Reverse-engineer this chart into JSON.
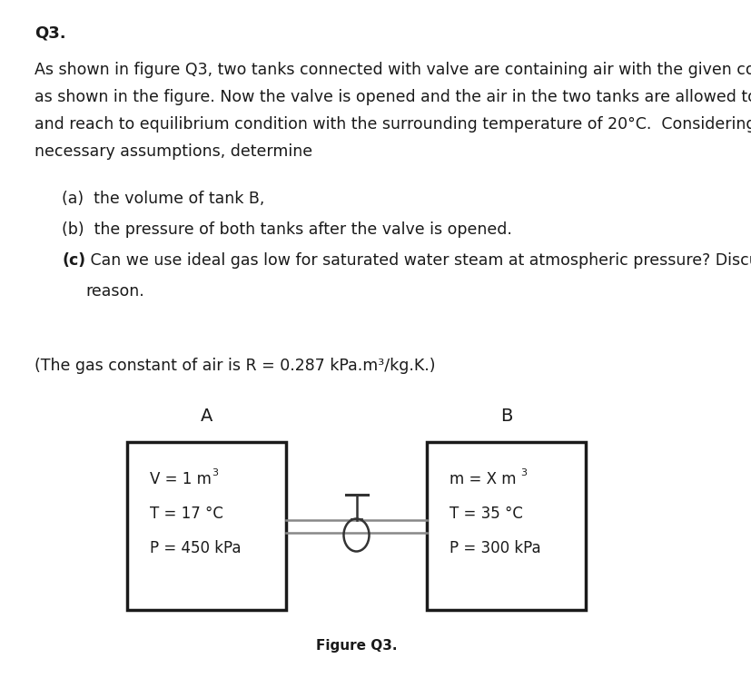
{
  "title": "Q3.",
  "para1_lines": [
    "As shown in figure Q3, two tanks connected with valve are containing air with the given condition",
    "as shown in the figure. Now the valve is opened and the air in the two tanks are allowed to mix",
    "and reach to equilibrium condition with the surrounding temperature of 20°C.  Considering the",
    "necessary assumptions, determine"
  ],
  "item_a": "(a)  the volume of tank B,",
  "item_b": "(b)  the pressure of both tanks after the valve is opened.",
  "item_c_bold": "(c)",
  "item_c_rest": " Can we use ideal gas low for saturated water steam at atmospheric pressure? Discuss the",
  "item_c2": "reason.",
  "gas_constant": "(The gas constant of air is R = 0.287 kPa.m³/kg.K.)",
  "label_A": "A",
  "label_B": "B",
  "tank_A_v": "V = 1 m",
  "tank_A_t": "T = 17 °C",
  "tank_A_p": "P = 450 kPa",
  "tank_B_m": "m = X m",
  "tank_B_t": "T = 35 °C",
  "tank_B_p": "P = 300 kPa",
  "figure_caption": "Figure Q3.",
  "bg_color": "#ffffff",
  "text_color": "#1a1a1a",
  "box_color": "#1a1a1a",
  "font_size_body": 12.5,
  "font_size_title": 13,
  "font_size_tank": 12,
  "font_size_label": 14
}
